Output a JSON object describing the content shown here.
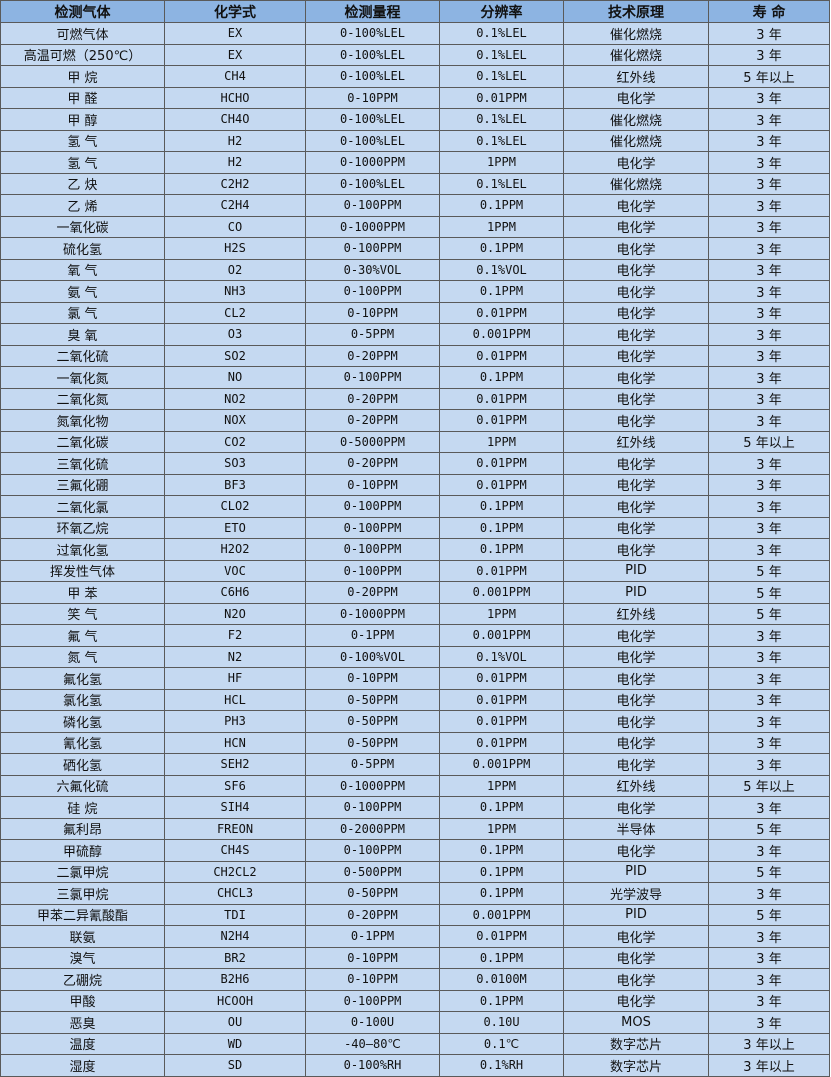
{
  "headers": [
    "检测气体",
    "化学式",
    "检测量程",
    "分辨率",
    "技术原理",
    "寿 命"
  ],
  "colors": {
    "header_bg": "#8db4e2",
    "row_bg": "#c5d9f1",
    "border": "#5a5a5a"
  },
  "rows": [
    [
      "可燃气体",
      "EX",
      "0-100%LEL",
      "0.1%LEL",
      "催化燃烧",
      "3 年"
    ],
    [
      "高温可燃（250℃）",
      "EX",
      "0-100%LEL",
      "0.1%LEL",
      "催化燃烧",
      "3 年"
    ],
    [
      "甲 烷",
      "CH4",
      "0-100%LEL",
      "0.1%LEL",
      "红外线",
      "5 年以上"
    ],
    [
      "甲 醛",
      "HCHO",
      "0-10PPM",
      "0.01PPM",
      "电化学",
      "3 年"
    ],
    [
      "甲 醇",
      "CH4O",
      "0-100%LEL",
      "0.1%LEL",
      "催化燃烧",
      "3 年"
    ],
    [
      "氢 气",
      "H2",
      "0-100%LEL",
      "0.1%LEL",
      "催化燃烧",
      "3 年"
    ],
    [
      "氢 气",
      "H2",
      "0-1000PPM",
      "1PPM",
      "电化学",
      "3 年"
    ],
    [
      "乙 炔",
      "C2H2",
      "0-100%LEL",
      "0.1%LEL",
      "催化燃烧",
      "3 年"
    ],
    [
      "乙 烯",
      "C2H4",
      "0-100PPM",
      "0.1PPM",
      "电化学",
      "3 年"
    ],
    [
      "一氧化碳",
      "CO",
      "0-1000PPM",
      "1PPM",
      "电化学",
      "3 年"
    ],
    [
      "硫化氢",
      "H2S",
      "0-100PPM",
      "0.1PPM",
      "电化学",
      "3 年"
    ],
    [
      "氧 气",
      "O2",
      "0-30%VOL",
      "0.1%VOL",
      "电化学",
      "3 年"
    ],
    [
      "氨 气",
      "NH3",
      "0-100PPM",
      "0.1PPM",
      "电化学",
      "3 年"
    ],
    [
      "氯 气",
      "CL2",
      "0-10PPM",
      "0.01PPM",
      "电化学",
      "3 年"
    ],
    [
      "臭 氧",
      "O3",
      "0-5PPM",
      "0.001PPM",
      "电化学",
      "3 年"
    ],
    [
      "二氧化硫",
      "SO2",
      "0-20PPM",
      "0.01PPM",
      "电化学",
      "3 年"
    ],
    [
      "一氧化氮",
      "NO",
      "0-100PPM",
      "0.1PPM",
      "电化学",
      "3 年"
    ],
    [
      "二氧化氮",
      "NO2",
      "0-20PPM",
      "0.01PPM",
      "电化学",
      "3 年"
    ],
    [
      "氮氧化物",
      "NOX",
      "0-20PPM",
      "0.01PPM",
      "电化学",
      "3 年"
    ],
    [
      "二氧化碳",
      "CO2",
      "0-5000PPM",
      "1PPM",
      "红外线",
      "5 年以上"
    ],
    [
      "三氧化硫",
      "SO3",
      "0-20PPM",
      "0.01PPM",
      "电化学",
      "3 年"
    ],
    [
      "三氟化硼",
      "BF3",
      "0-10PPM",
      "0.01PPM",
      "电化学",
      "3 年"
    ],
    [
      "二氧化氯",
      "CLO2",
      "0-100PPM",
      "0.1PPM",
      "电化学",
      "3 年"
    ],
    [
      "环氧乙烷",
      "ETO",
      "0-100PPM",
      "0.1PPM",
      "电化学",
      "3 年"
    ],
    [
      "过氧化氢",
      "H2O2",
      "0-100PPM",
      "0.1PPM",
      "电化学",
      "3 年"
    ],
    [
      "挥发性气体",
      "VOC",
      "0-100PPM",
      "0.01PPM",
      "PID",
      "5 年"
    ],
    [
      "甲 苯",
      "C6H6",
      "0-20PPM",
      "0.001PPM",
      "PID",
      "5 年"
    ],
    [
      "笑 气",
      "N2O",
      "0-1000PPM",
      "1PPM",
      "红外线",
      "5 年"
    ],
    [
      "氟 气",
      "F2",
      "0-1PPM",
      "0.001PPM",
      "电化学",
      "3 年"
    ],
    [
      "氮 气",
      "N2",
      "0-100%VOL",
      "0.1%VOL",
      "电化学",
      "3 年"
    ],
    [
      "氟化氢",
      "HF",
      "0-10PPM",
      "0.01PPM",
      "电化学",
      "3 年"
    ],
    [
      "氯化氢",
      "HCL",
      "0-50PPM",
      "0.01PPM",
      "电化学",
      "3 年"
    ],
    [
      "磷化氢",
      "PH3",
      "0-50PPM",
      "0.01PPM",
      "电化学",
      "3 年"
    ],
    [
      "氰化氢",
      "HCN",
      "0-50PPM",
      "0.01PPM",
      "电化学",
      "3 年"
    ],
    [
      "硒化氢",
      "SEH2",
      "0-5PPM",
      "0.001PPM",
      "电化学",
      "3 年"
    ],
    [
      "六氟化硫",
      "SF6",
      "0-1000PPM",
      "1PPM",
      "红外线",
      "5 年以上"
    ],
    [
      "硅 烷",
      "SIH4",
      "0-100PPM",
      "0.1PPM",
      "电化学",
      "3 年"
    ],
    [
      "氟利昂",
      "FREON",
      "0-2000PPM",
      "1PPM",
      "半导体",
      "5 年"
    ],
    [
      "甲硫醇",
      "CH4S",
      "0-100PPM",
      "0.1PPM",
      "电化学",
      "3 年"
    ],
    [
      "二氯甲烷",
      "CH2CL2",
      "0-500PPM",
      "0.1PPM",
      "PID",
      "5 年"
    ],
    [
      "三氯甲烷",
      "CHCL3",
      "0-50PPM",
      "0.1PPM",
      "光学波导",
      "3 年"
    ],
    [
      "甲苯二异氰酸酯",
      "TDI",
      "0-20PPM",
      "0.001PPM",
      "PID",
      "5 年"
    ],
    [
      "联氨",
      "N2H4",
      "0-1PPM",
      "0.01PPM",
      "电化学",
      "3 年"
    ],
    [
      "溴气",
      "BR2",
      "0-10PPM",
      "0.1PPM",
      "电化学",
      "3 年"
    ],
    [
      "乙硼烷",
      "B2H6",
      "0-10PPM",
      "0.0100M",
      "电化学",
      "3 年"
    ],
    [
      "甲酸",
      "HCOOH",
      "0-100PPM",
      "0.1PPM",
      "电化学",
      "3 年"
    ],
    [
      "恶臭",
      "OU",
      "0-100U",
      "0.10U",
      "MOS",
      "3 年"
    ],
    [
      "温度",
      "WD",
      "-40—80℃",
      "0.1℃",
      "数字芯片",
      "3 年以上"
    ],
    [
      "湿度",
      "SD",
      "0-100%RH",
      "0.1%RH",
      "数字芯片",
      "3 年以上"
    ]
  ]
}
